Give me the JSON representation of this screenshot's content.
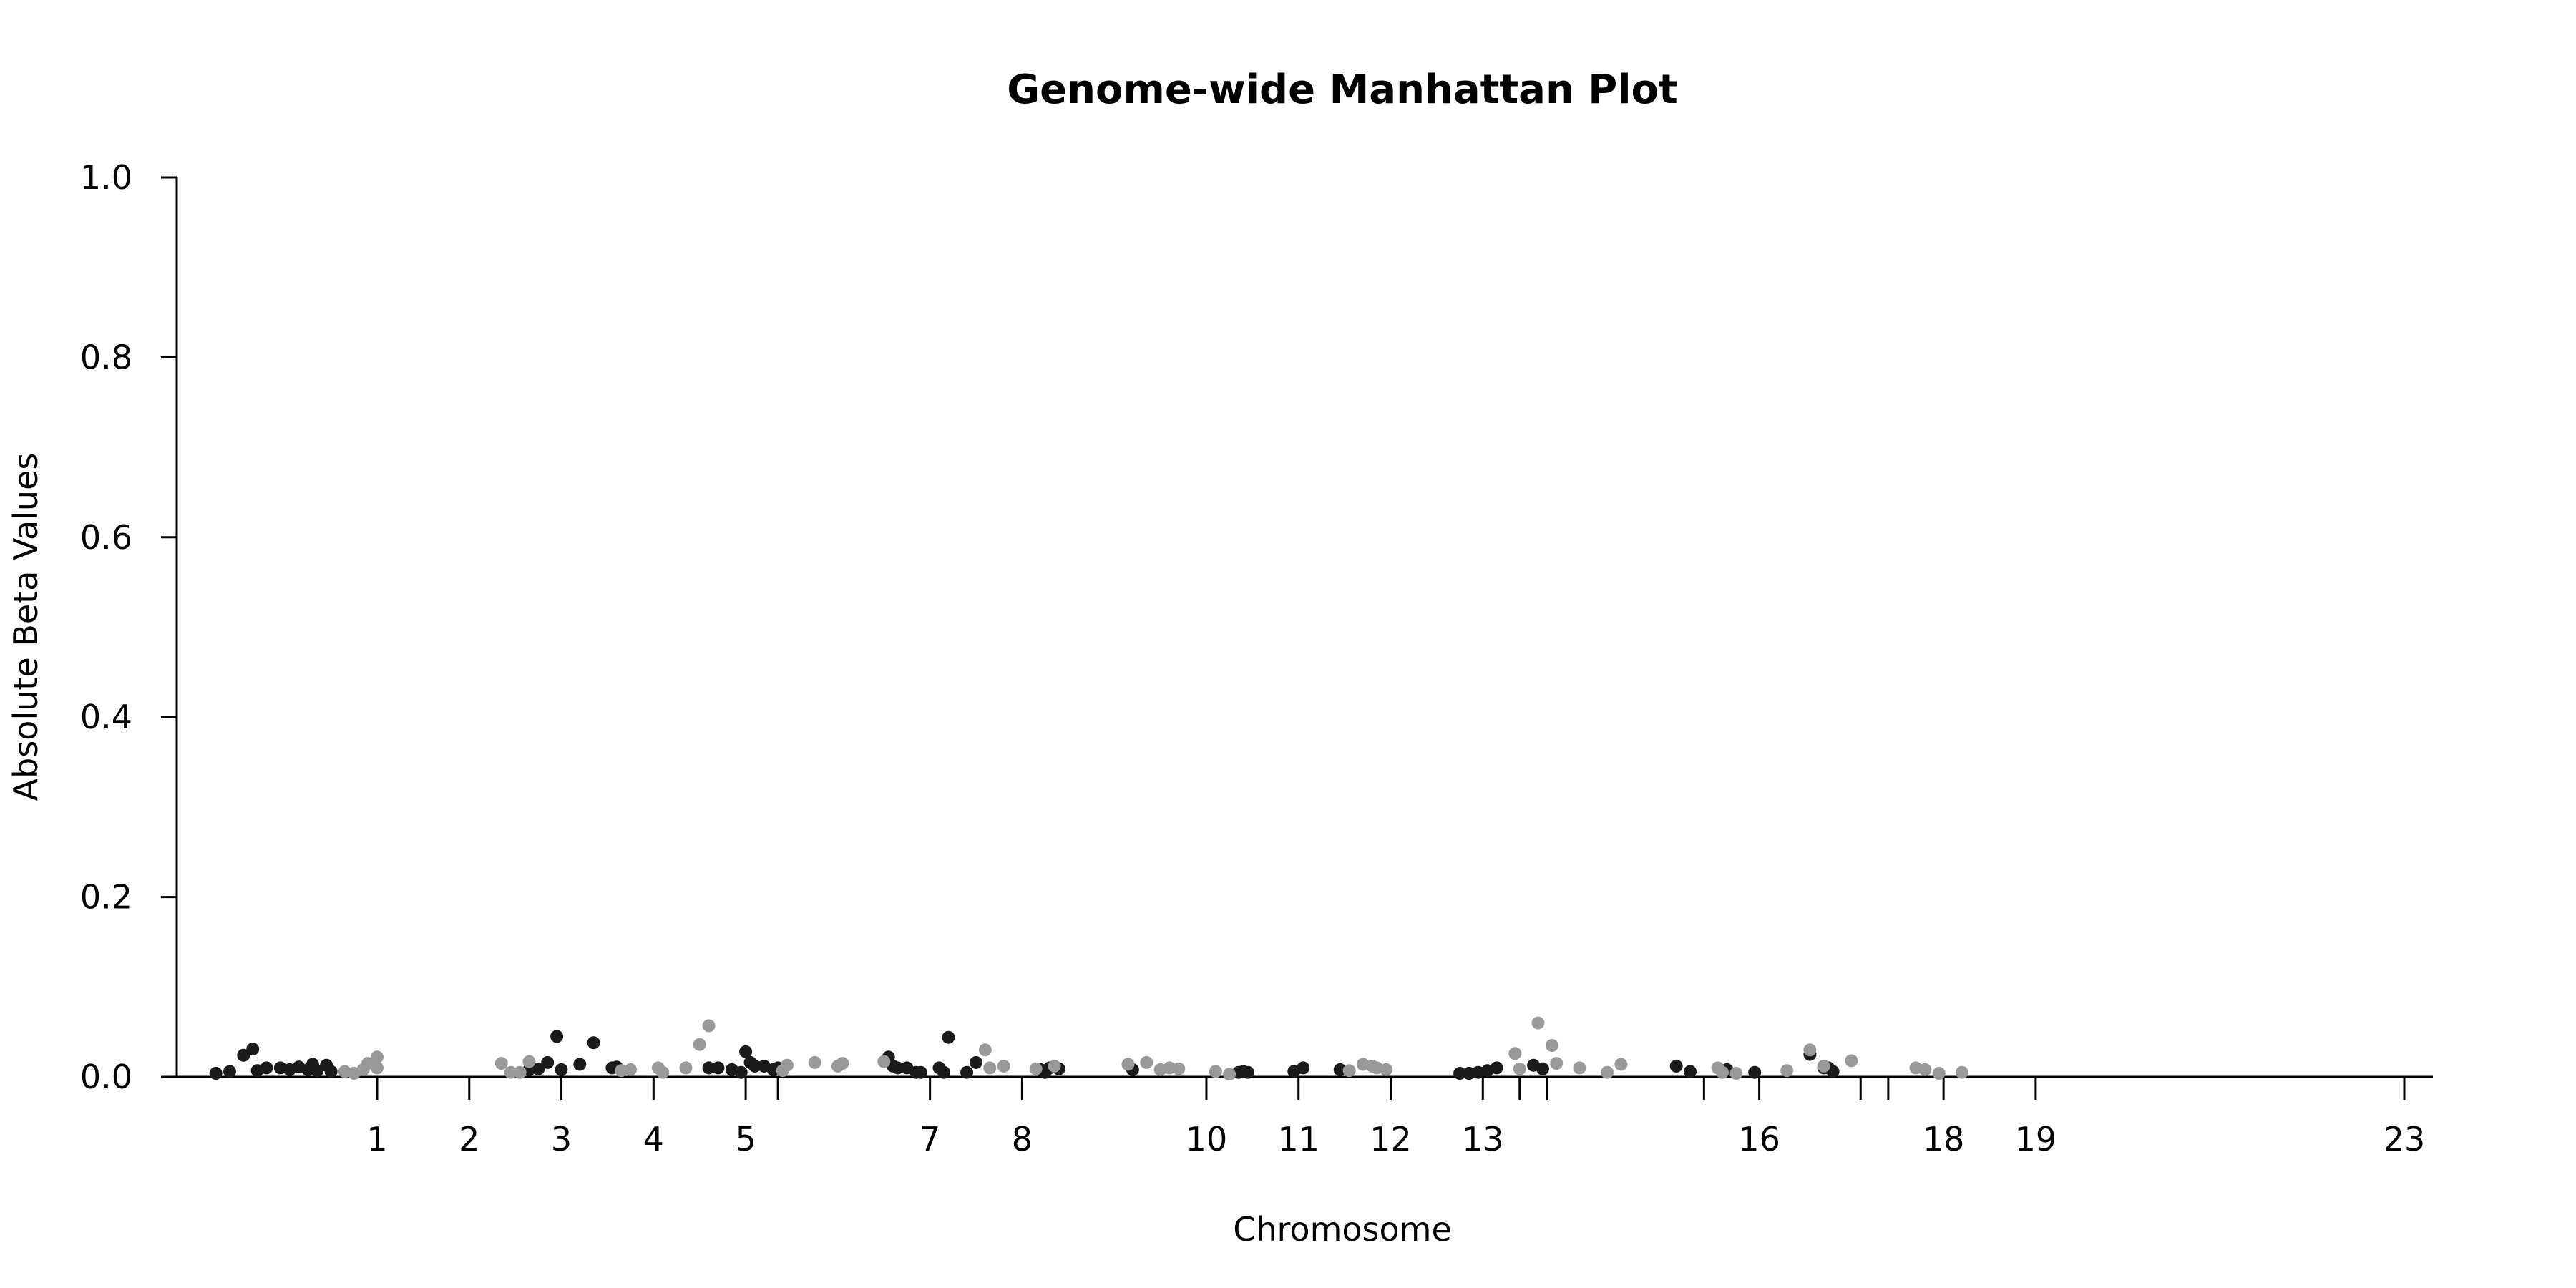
{
  "chart_data": {
    "type": "scatter",
    "title": "Genome-wide Manhattan Plot",
    "xlabel": "Chromosome",
    "ylabel": "Absolute Beta Values",
    "ylim": [
      0,
      1.0
    ],
    "yticks": [
      "0.0",
      "0.2",
      "0.4",
      "0.6",
      "0.8",
      "1.0"
    ],
    "xticks": [
      "1",
      "2",
      "3",
      "4",
      "5",
      "7",
      "8",
      "10",
      "11",
      "12",
      "13",
      "16",
      "18",
      "19",
      "23"
    ],
    "grid": false,
    "legend": "none",
    "colors": {
      "dark": "#1a1a1a",
      "light": "#999999"
    },
    "series": [
      {
        "color": "dark",
        "points": [
          [
            -0.75,
            0.004
          ],
          [
            -0.6,
            0.006
          ],
          [
            -0.45,
            0.024
          ],
          [
            -0.35,
            0.031
          ],
          [
            -0.3,
            0.007
          ],
          [
            -0.2,
            0.01
          ],
          [
            -0.05,
            0.01
          ],
          [
            0.05,
            0.008
          ],
          [
            0.15,
            0.011
          ],
          [
            0.25,
            0.008
          ],
          [
            0.3,
            0.014
          ],
          [
            0.35,
            0.007
          ],
          [
            0.45,
            0.013
          ],
          [
            0.5,
            0.006
          ],
          [
            2.65,
            0.008
          ],
          [
            2.75,
            0.009
          ],
          [
            2.85,
            0.016
          ],
          [
            2.95,
            0.045
          ],
          [
            3.0,
            0.008
          ],
          [
            3.2,
            0.014
          ],
          [
            3.35,
            0.038
          ],
          [
            3.55,
            0.01
          ],
          [
            3.6,
            0.011
          ],
          [
            4.6,
            0.01
          ],
          [
            4.7,
            0.01
          ],
          [
            4.85,
            0.008
          ],
          [
            4.95,
            0.005
          ],
          [
            5.0,
            0.028
          ],
          [
            5.05,
            0.016
          ],
          [
            5.1,
            0.012
          ],
          [
            5.2,
            0.012
          ],
          [
            5.3,
            0.008
          ],
          [
            5.35,
            0.01
          ],
          [
            6.55,
            0.022
          ],
          [
            6.6,
            0.012
          ],
          [
            6.65,
            0.01
          ],
          [
            6.75,
            0.01
          ],
          [
            6.85,
            0.005
          ],
          [
            6.9,
            0.005
          ],
          [
            7.1,
            0.01
          ],
          [
            7.15,
            0.005
          ],
          [
            7.2,
            0.044
          ],
          [
            7.4,
            0.005
          ],
          [
            7.5,
            0.016
          ],
          [
            8.2,
            0.008
          ],
          [
            8.25,
            0.005
          ],
          [
            8.3,
            0.01
          ],
          [
            8.4,
            0.009
          ],
          [
            9.2,
            0.008
          ],
          [
            10.35,
            0.005
          ],
          [
            10.4,
            0.006
          ],
          [
            10.45,
            0.005
          ],
          [
            10.95,
            0.006
          ],
          [
            11.05,
            0.01
          ],
          [
            11.45,
            0.008
          ],
          [
            12.75,
            0.004
          ],
          [
            12.85,
            0.004
          ],
          [
            12.95,
            0.005
          ],
          [
            13.05,
            0.007
          ],
          [
            13.15,
            0.01
          ],
          [
            13.55,
            0.013
          ],
          [
            13.65,
            0.009
          ],
          [
            15.1,
            0.012
          ],
          [
            15.25,
            0.006
          ],
          [
            15.65,
            0.008
          ],
          [
            15.95,
            0.005
          ],
          [
            16.55,
            0.025
          ],
          [
            16.7,
            0.01
          ],
          [
            16.75,
            0.01
          ],
          [
            16.8,
            0.006
          ]
        ]
      },
      {
        "color": "light",
        "points": [
          [
            0.65,
            0.006
          ],
          [
            0.75,
            0.004
          ],
          [
            0.85,
            0.008
          ],
          [
            0.9,
            0.015
          ],
          [
            1.0,
            0.022
          ],
          [
            1.0,
            0.01
          ],
          [
            2.35,
            0.015
          ],
          [
            2.45,
            0.005
          ],
          [
            2.55,
            0.005
          ],
          [
            2.65,
            0.017
          ],
          [
            3.65,
            0.007
          ],
          [
            3.75,
            0.008
          ],
          [
            4.05,
            0.01
          ],
          [
            4.1,
            0.005
          ],
          [
            4.35,
            0.01
          ],
          [
            4.5,
            0.036
          ],
          [
            4.6,
            0.057
          ],
          [
            5.4,
            0.007
          ],
          [
            5.45,
            0.013
          ],
          [
            5.75,
            0.016
          ],
          [
            6.0,
            0.012
          ],
          [
            6.05,
            0.015
          ],
          [
            6.5,
            0.017
          ],
          [
            7.6,
            0.03
          ],
          [
            7.65,
            0.01
          ],
          [
            7.8,
            0.012
          ],
          [
            8.15,
            0.009
          ],
          [
            8.35,
            0.012
          ],
          [
            9.15,
            0.014
          ],
          [
            9.35,
            0.016
          ],
          [
            9.5,
            0.008
          ],
          [
            9.6,
            0.01
          ],
          [
            9.7,
            0.009
          ],
          [
            10.1,
            0.006
          ],
          [
            10.25,
            0.003
          ],
          [
            11.55,
            0.007
          ],
          [
            11.7,
            0.014
          ],
          [
            11.8,
            0.012
          ],
          [
            11.85,
            0.01
          ],
          [
            11.95,
            0.008
          ],
          [
            13.35,
            0.026
          ],
          [
            13.4,
            0.009
          ],
          [
            13.6,
            0.06
          ],
          [
            13.75,
            0.035
          ],
          [
            13.8,
            0.015
          ],
          [
            14.05,
            0.01
          ],
          [
            14.35,
            0.005
          ],
          [
            14.5,
            0.014
          ],
          [
            15.55,
            0.01
          ],
          [
            15.6,
            0.005
          ],
          [
            15.75,
            0.004
          ],
          [
            16.3,
            0.007
          ],
          [
            16.55,
            0.03
          ],
          [
            16.7,
            0.012
          ],
          [
            17.0,
            0.018
          ],
          [
            17.7,
            0.01
          ],
          [
            17.8,
            0.008
          ],
          [
            17.95,
            0.004
          ],
          [
            18.2,
            0.005
          ]
        ]
      }
    ]
  }
}
